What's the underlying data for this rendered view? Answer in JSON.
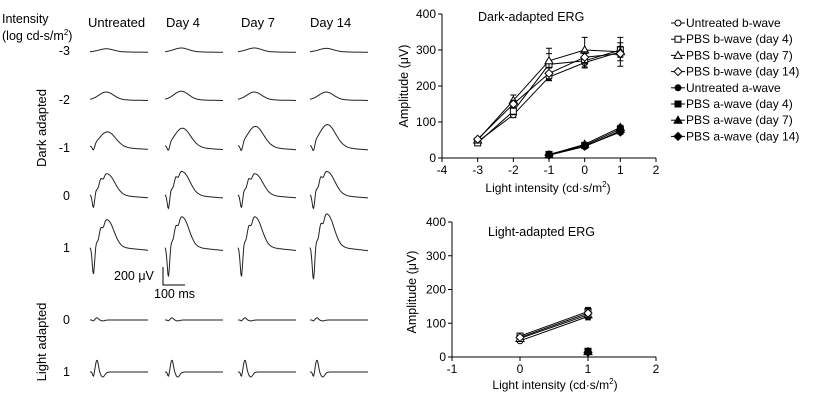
{
  "traces_panel": {
    "row_header_line1": "Intensity",
    "row_header_line2": "(log cd-s/m",
    "row_header_sup": "2",
    "row_header_close": ")",
    "columns": [
      "Untreated",
      "Day 4",
      "Day 7",
      "Day 14"
    ],
    "dark_label": "Dark adapted",
    "light_label": "Light adapted",
    "dark_rows": [
      "-3",
      "-2",
      "-1",
      "0",
      "1"
    ],
    "light_rows": [
      "0",
      "1"
    ],
    "scale_amplitude": "200 μV",
    "scale_time": "100 ms"
  },
  "chart_data": [
    {
      "type": "line",
      "title": "Dark-adapted ERG",
      "xlabel_main": "Light intensity (cd·s/m",
      "xlabel_sup": "2",
      "xlabel_close": ")",
      "ylabel": "Amplitude (μV)",
      "xlim": [
        -4,
        2
      ],
      "ylim": [
        0,
        400
      ],
      "xticks": [
        "-4",
        "-3",
        "-2",
        "-1",
        "0",
        "1",
        "2"
      ],
      "yticks": [
        "0",
        "100",
        "200",
        "300",
        "400"
      ],
      "grid": false,
      "legend_position": "right",
      "series": [
        {
          "name": "Untreated b-wave",
          "marker": "circle-open",
          "x": [
            -3,
            -2,
            -1,
            0,
            1
          ],
          "values": [
            45,
            120,
            225,
            265,
            295
          ],
          "err": [
            5,
            8,
            10,
            12,
            12
          ]
        },
        {
          "name": "PBS b-wave (day 4)",
          "marker": "square-open",
          "x": [
            -3,
            -2,
            -1,
            0,
            1
          ],
          "values": [
            42,
            130,
            260,
            270,
            300
          ],
          "err": [
            5,
            10,
            45,
            20,
            20
          ]
        },
        {
          "name": "PBS b-wave (day 7)",
          "marker": "triangle-open",
          "x": [
            -3,
            -2,
            -1,
            0,
            1
          ],
          "values": [
            50,
            160,
            270,
            300,
            295
          ],
          "err": [
            5,
            15,
            20,
            35,
            40
          ]
        },
        {
          "name": "PBS b-wave (day 14)",
          "marker": "diamond-open",
          "x": [
            -3,
            -2,
            -1,
            0,
            1
          ],
          "values": [
            52,
            150,
            235,
            280,
            290
          ],
          "err": [
            5,
            10,
            15,
            15,
            20
          ]
        },
        {
          "name": "Untreated a-wave",
          "marker": "circle-filled",
          "x": [
            -1,
            0,
            1
          ],
          "values": [
            8,
            32,
            75
          ],
          "err": [
            2,
            4,
            6
          ]
        },
        {
          "name": "PBS a-wave (day 4)",
          "marker": "square-filled",
          "x": [
            -1,
            0,
            1
          ],
          "values": [
            10,
            35,
            80
          ],
          "err": [
            2,
            4,
            6
          ]
        },
        {
          "name": "PBS a-wave (day 7)",
          "marker": "triangle-filled",
          "x": [
            -1,
            0,
            1
          ],
          "values": [
            9,
            38,
            85
          ],
          "err": [
            2,
            4,
            6
          ]
        },
        {
          "name": "PBS a-wave (day 14)",
          "marker": "diamond-filled",
          "x": [
            -1,
            0,
            1
          ],
          "values": [
            8,
            33,
            72
          ],
          "err": [
            2,
            4,
            6
          ]
        }
      ]
    },
    {
      "type": "line",
      "title": "Light-adapted ERG",
      "xlabel_main": "Light intensity (cd·s/m",
      "xlabel_sup": "2",
      "xlabel_close": ")",
      "ylabel": "Amplitude (μV)",
      "xlim": [
        -1,
        2
      ],
      "ylim": [
        0,
        400
      ],
      "xticks": [
        "-1",
        "0",
        "1",
        "2"
      ],
      "yticks": [
        "0",
        "100",
        "200",
        "300",
        "400"
      ],
      "grid": false,
      "series": [
        {
          "name": "Untreated b-wave",
          "marker": "circle-open",
          "x": [
            0,
            1
          ],
          "values": [
            48,
            120
          ],
          "err": [
            4,
            10
          ]
        },
        {
          "name": "PBS b-wave (day 4)",
          "marker": "square-open",
          "x": [
            0,
            1
          ],
          "values": [
            62,
            135
          ],
          "err": [
            4,
            12
          ]
        },
        {
          "name": "PBS b-wave (day 7)",
          "marker": "triangle-open",
          "x": [
            0,
            1
          ],
          "values": [
            55,
            125
          ],
          "err": [
            4,
            10
          ]
        },
        {
          "name": "PBS b-wave (day 14)",
          "marker": "diamond-open",
          "x": [
            0,
            1
          ],
          "values": [
            58,
            130
          ],
          "err": [
            4,
            12
          ]
        },
        {
          "name": "Untreated a-wave",
          "marker": "circle-filled",
          "x": [
            1
          ],
          "values": [
            15
          ],
          "err": [
            3
          ]
        },
        {
          "name": "PBS a-wave (day 4)",
          "marker": "square-filled",
          "x": [
            1
          ],
          "values": [
            17
          ],
          "err": [
            3
          ]
        },
        {
          "name": "PBS a-wave (day 7)",
          "marker": "triangle-filled",
          "x": [
            1
          ],
          "values": [
            16
          ],
          "err": [
            3
          ]
        },
        {
          "name": "PBS a-wave (day 14)",
          "marker": "diamond-filled",
          "x": [
            1
          ],
          "values": [
            14
          ],
          "err": [
            3
          ]
        }
      ]
    }
  ]
}
